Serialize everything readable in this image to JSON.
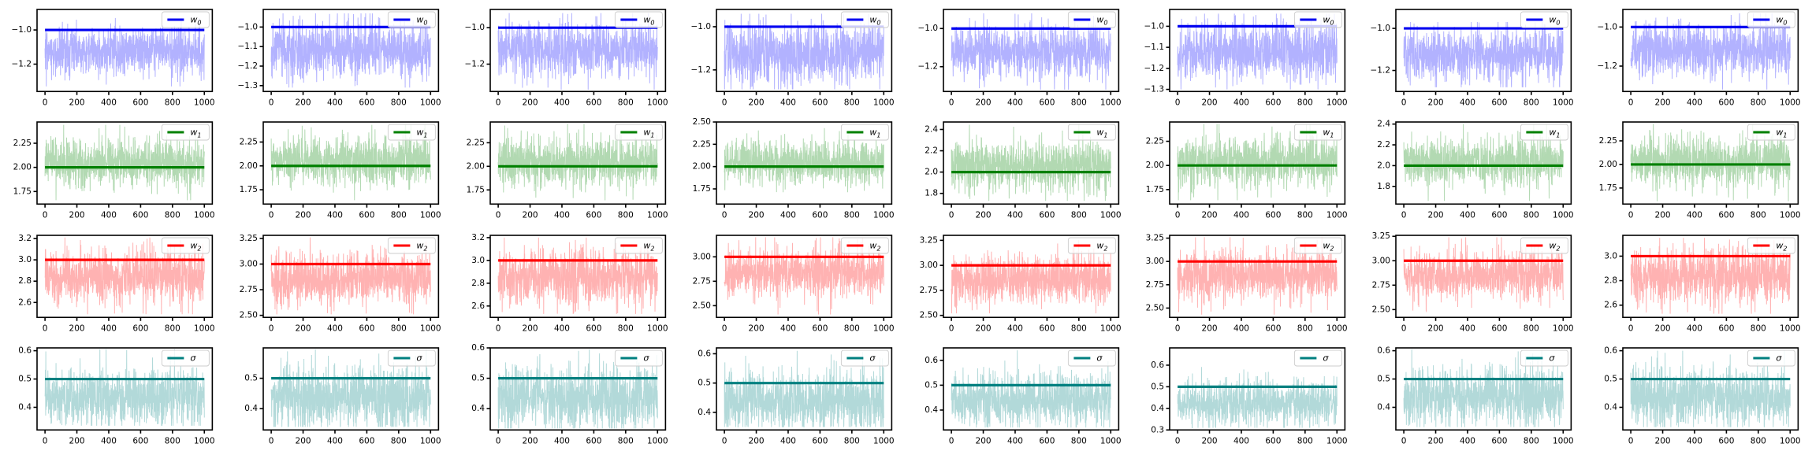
{
  "chart_data": {
    "type": "line",
    "description": "Grid of MCMC trace plots: 4 parameter rows (w0, w1, w2, sigma) by 8 chains. Light jagged series = posterior samples over 1000 iterations; bold horizontal line = reference/true value.",
    "layout": {
      "rows": 4,
      "cols": 8,
      "grid": "off",
      "legend_position": "upper right",
      "background": "#ffffff"
    },
    "n_samples_per_trace": 1000,
    "x_axis": {
      "lim": [
        -50,
        1050
      ],
      "ticks": [
        0,
        200,
        400,
        600,
        800,
        1000
      ],
      "tick_labels": [
        "0",
        "200",
        "400",
        "600",
        "800",
        "1000"
      ]
    },
    "rows": [
      {
        "param": "w0",
        "legend": {
          "base": "w",
          "sub": "0"
        },
        "line_color": "#0000f0",
        "trace_color": "#b2b2ff",
        "true_value": -1.0,
        "subplots": [
          {
            "ylim": [
              -1.36,
              -0.88
            ],
            "ytick_values": [
              -1.0,
              -1.2
            ],
            "ytick_labels": [
              "−1.0",
              "−1.2"
            ],
            "trace": {
              "center": -1.12,
              "std": 0.065,
              "min": -1.33,
              "max": -0.93
            },
            "seed": 101
          },
          {
            "ylim": [
              -1.33,
              -0.91
            ],
            "ytick_values": [
              -1.0,
              -1.1,
              -1.2,
              -1.3
            ],
            "ytick_labels": [
              "−1.0",
              "−1.1",
              "−1.2",
              "−1.3"
            ],
            "trace": {
              "center": -1.12,
              "std": 0.07,
              "min": -1.31,
              "max": -0.93
            },
            "seed": 102
          },
          {
            "ylim": [
              -1.35,
              -0.9
            ],
            "ytick_values": [
              -1.0,
              -1.2
            ],
            "ytick_labels": [
              "−1.0",
              "−1.2"
            ],
            "trace": {
              "center": -1.12,
              "std": 0.07,
              "min": -1.34,
              "max": -0.92
            },
            "seed": 103
          },
          {
            "ylim": [
              -1.3,
              -0.92
            ],
            "ytick_values": [
              -1.0,
              -1.2
            ],
            "ytick_labels": [
              "−1.0",
              "−1.2"
            ],
            "trace": {
              "center": -1.12,
              "std": 0.065,
              "min": -1.29,
              "max": -0.94
            },
            "seed": 104
          },
          {
            "ylim": [
              -1.33,
              -0.9
            ],
            "ytick_values": [
              -1.0,
              -1.2
            ],
            "ytick_labels": [
              "−1.0",
              "−1.2"
            ],
            "trace": {
              "center": -1.12,
              "std": 0.065,
              "min": -1.32,
              "max": -0.92
            },
            "seed": 105
          },
          {
            "ylim": [
              -1.31,
              -0.92
            ],
            "ytick_values": [
              -1.0,
              -1.1,
              -1.2,
              -1.3
            ],
            "ytick_labels": [
              "−1.0",
              "−1.1",
              "−1.2",
              "−1.3"
            ],
            "trace": {
              "center": -1.12,
              "std": 0.065,
              "min": -1.3,
              "max": -0.94
            },
            "seed": 106
          },
          {
            "ylim": [
              -1.3,
              -0.91
            ],
            "ytick_values": [
              -1.0,
              -1.2
            ],
            "ytick_labels": [
              "−1.0",
              "−1.2"
            ],
            "trace": {
              "center": -1.13,
              "std": 0.06,
              "min": -1.28,
              "max": -0.97
            },
            "seed": 107
          },
          {
            "ylim": [
              -1.33,
              -0.91
            ],
            "ytick_values": [
              -1.0,
              -1.2
            ],
            "ytick_labels": [
              "−1.0",
              "−1.2"
            ],
            "trace": {
              "center": -1.12,
              "std": 0.065,
              "min": -1.32,
              "max": -0.93
            },
            "seed": 108
          }
        ]
      },
      {
        "param": "w1",
        "legend": {
          "base": "w",
          "sub": "1"
        },
        "line_color": "#008000",
        "trace_color": "#b2d9b2",
        "true_value": 2.0,
        "subplots": [
          {
            "ylim": [
              1.62,
              2.47
            ],
            "ytick_values": [
              1.75,
              2.0,
              2.25
            ],
            "ytick_labels": [
              "1.75",
              "2.00",
              "2.25"
            ],
            "trace": {
              "center": 2.05,
              "std": 0.12,
              "min": 1.66,
              "max": 2.44
            },
            "seed": 201
          },
          {
            "ylim": [
              1.6,
              2.46
            ],
            "ytick_values": [
              1.75,
              2.0,
              2.25
            ],
            "ytick_labels": [
              "1.75",
              "2.00",
              "2.25"
            ],
            "trace": {
              "center": 2.05,
              "std": 0.12,
              "min": 1.64,
              "max": 2.43
            },
            "seed": 202
          },
          {
            "ylim": [
              1.6,
              2.47
            ],
            "ytick_values": [
              1.75,
              2.0,
              2.25
            ],
            "ytick_labels": [
              "1.75",
              "2.00",
              "2.25"
            ],
            "trace": {
              "center": 2.05,
              "std": 0.12,
              "min": 1.64,
              "max": 2.45
            },
            "seed": 203
          },
          {
            "ylim": [
              1.58,
              2.5
            ],
            "ytick_values": [
              1.75,
              2.0,
              2.25,
              2.5
            ],
            "ytick_labels": [
              "1.75",
              "2.00",
              "2.25",
              "2.50"
            ],
            "trace": {
              "center": 2.05,
              "std": 0.12,
              "min": 1.62,
              "max": 2.48
            },
            "seed": 204
          },
          {
            "ylim": [
              1.7,
              2.47
            ],
            "ytick_values": [
              1.8,
              2.0,
              2.2,
              2.4
            ],
            "ytick_labels": [
              "1.8",
              "2.0",
              "2.2",
              "2.4"
            ],
            "trace": {
              "center": 2.06,
              "std": 0.11,
              "min": 1.73,
              "max": 2.45
            },
            "seed": 205
          },
          {
            "ylim": [
              1.6,
              2.45
            ],
            "ytick_values": [
              1.75,
              2.0,
              2.25
            ],
            "ytick_labels": [
              "1.75",
              "2.00",
              "2.25"
            ],
            "trace": {
              "center": 2.04,
              "std": 0.12,
              "min": 1.64,
              "max": 2.43
            },
            "seed": 206
          },
          {
            "ylim": [
              1.63,
              2.42
            ],
            "ytick_values": [
              1.8,
              2.0,
              2.2,
              2.4
            ],
            "ytick_labels": [
              "1.8",
              "2.0",
              "2.2",
              "2.4"
            ],
            "trace": {
              "center": 2.04,
              "std": 0.11,
              "min": 1.66,
              "max": 2.4
            },
            "seed": 207
          },
          {
            "ylim": [
              1.58,
              2.45
            ],
            "ytick_values": [
              1.75,
              2.0,
              2.25
            ],
            "ytick_labels": [
              "1.75",
              "2.00",
              "2.25"
            ],
            "trace": {
              "center": 2.04,
              "std": 0.12,
              "min": 1.61,
              "max": 2.43
            },
            "seed": 208
          }
        ]
      },
      {
        "param": "w2",
        "legend": {
          "base": "w",
          "sub": "2"
        },
        "line_color": "#ff0000",
        "trace_color": "#ffb2b2",
        "true_value": 3.0,
        "subplots": [
          {
            "ylim": [
              2.46,
              3.23
            ],
            "ytick_values": [
              2.6,
              2.8,
              3.0,
              3.2
            ],
            "ytick_labels": [
              "2.6",
              "2.8",
              "3.0",
              "3.2"
            ],
            "trace": {
              "center": 2.85,
              "std": 0.12,
              "min": 2.49,
              "max": 3.21
            },
            "seed": 301
          },
          {
            "ylim": [
              2.48,
              3.28
            ],
            "ytick_values": [
              2.5,
              2.75,
              3.0,
              3.25
            ],
            "ytick_labels": [
              "2.50",
              "2.75",
              "3.00",
              "3.25"
            ],
            "trace": {
              "center": 2.86,
              "std": 0.12,
              "min": 2.51,
              "max": 3.26
            },
            "seed": 302
          },
          {
            "ylim": [
              2.5,
              3.22
            ],
            "ytick_values": [
              2.6,
              2.8,
              3.0,
              3.2
            ],
            "ytick_labels": [
              "2.6",
              "2.8",
              "3.0",
              "3.2"
            ],
            "trace": {
              "center": 2.85,
              "std": 0.12,
              "min": 2.53,
              "max": 3.2
            },
            "seed": 303
          },
          {
            "ylim": [
              2.38,
              3.22
            ],
            "ytick_values": [
              2.5,
              2.75,
              3.0
            ],
            "ytick_labels": [
              "2.50",
              "2.75",
              "3.00"
            ],
            "trace": {
              "center": 2.84,
              "std": 0.12,
              "min": 2.41,
              "max": 3.2
            },
            "seed": 304
          },
          {
            "ylim": [
              2.48,
              3.3
            ],
            "ytick_values": [
              2.5,
              2.75,
              3.0,
              3.25
            ],
            "ytick_labels": [
              "2.50",
              "2.75",
              "3.00",
              "3.25"
            ],
            "trace": {
              "center": 2.86,
              "std": 0.12,
              "min": 2.52,
              "max": 3.28
            },
            "seed": 305
          },
          {
            "ylim": [
              2.4,
              3.28
            ],
            "ytick_values": [
              2.5,
              2.75,
              3.0,
              3.25
            ],
            "ytick_labels": [
              "2.50",
              "2.75",
              "3.00",
              "3.25"
            ],
            "trace": {
              "center": 2.85,
              "std": 0.13,
              "min": 2.43,
              "max": 3.26
            },
            "seed": 306
          },
          {
            "ylim": [
              2.42,
              3.26
            ],
            "ytick_values": [
              2.5,
              2.75,
              3.0,
              3.25
            ],
            "ytick_labels": [
              "2.50",
              "2.75",
              "3.00",
              "3.25"
            ],
            "trace": {
              "center": 2.85,
              "std": 0.12,
              "min": 2.45,
              "max": 3.24
            },
            "seed": 307
          },
          {
            "ylim": [
              2.5,
              3.17
            ],
            "ytick_values": [
              2.6,
              2.8,
              3.0
            ],
            "ytick_labels": [
              "2.6",
              "2.8",
              "3.0"
            ],
            "trace": {
              "center": 2.84,
              "std": 0.11,
              "min": 2.53,
              "max": 3.15
            },
            "seed": 308
          }
        ]
      },
      {
        "param": "sigma",
        "legend": {
          "base": "σ",
          "sub": ""
        },
        "line_color": "#008080",
        "trace_color": "#b2d9d9",
        "true_value": 0.5,
        "subplots": [
          {
            "ylim": [
              0.32,
              0.61
            ],
            "ytick_values": [
              0.4,
              0.5,
              0.6
            ],
            "ytick_labels": [
              "0.4",
              "0.5",
              "0.6"
            ],
            "trace": {
              "center": 0.435,
              "std": 0.05,
              "min": 0.335,
              "max": 0.605
            },
            "seed": 401
          },
          {
            "ylim": [
              0.33,
              0.6
            ],
            "ytick_values": [
              0.4,
              0.5
            ],
            "ytick_labels": [
              "0.4",
              "0.5"
            ],
            "trace": {
              "center": 0.44,
              "std": 0.05,
              "min": 0.34,
              "max": 0.595
            },
            "seed": 402
          },
          {
            "ylim": [
              0.33,
              0.6
            ],
            "ytick_values": [
              0.4,
              0.5,
              0.6
            ],
            "ytick_labels": [
              "0.4",
              "0.5",
              "0.6"
            ],
            "trace": {
              "center": 0.435,
              "std": 0.05,
              "min": 0.335,
              "max": 0.595
            },
            "seed": 403
          },
          {
            "ylim": [
              0.34,
              0.62
            ],
            "ytick_values": [
              0.4,
              0.5,
              0.6
            ],
            "ytick_labels": [
              "0.4",
              "0.5",
              "0.6"
            ],
            "trace": {
              "center": 0.44,
              "std": 0.05,
              "min": 0.35,
              "max": 0.61
            },
            "seed": 404
          },
          {
            "ylim": [
              0.32,
              0.65
            ],
            "ytick_values": [
              0.4,
              0.5,
              0.6
            ],
            "ytick_labels": [
              "0.4",
              "0.5",
              "0.6"
            ],
            "trace": {
              "center": 0.44,
              "std": 0.05,
              "min": 0.33,
              "max": 0.64
            },
            "seed": 405
          },
          {
            "ylim": [
              0.3,
              0.68
            ],
            "ytick_values": [
              0.3,
              0.4,
              0.5,
              0.6
            ],
            "ytick_labels": [
              "0.3",
              "0.4",
              "0.5",
              "0.6"
            ],
            "trace": {
              "center": 0.425,
              "std": 0.05,
              "min": 0.31,
              "max": 0.67
            },
            "seed": 406
          },
          {
            "ylim": [
              0.32,
              0.61
            ],
            "ytick_values": [
              0.4,
              0.5,
              0.6
            ],
            "ytick_labels": [
              "0.4",
              "0.5",
              "0.6"
            ],
            "trace": {
              "center": 0.44,
              "std": 0.05,
              "min": 0.33,
              "max": 0.605
            },
            "seed": 407
          },
          {
            "ylim": [
              0.32,
              0.61
            ],
            "ytick_values": [
              0.4,
              0.5,
              0.6
            ],
            "ytick_labels": [
              "0.4",
              "0.5",
              "0.6"
            ],
            "trace": {
              "center": 0.435,
              "std": 0.05,
              "min": 0.33,
              "max": 0.6
            },
            "seed": 408
          }
        ]
      }
    ]
  }
}
